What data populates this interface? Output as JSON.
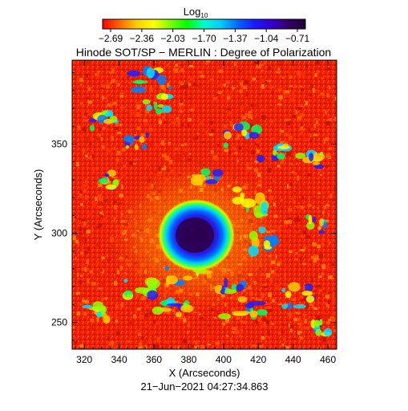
{
  "colorbar": {
    "title_base": "Log",
    "title_subscript": "10",
    "tick_labels": [
      "−2.69",
      "−2.36",
      "−2.03",
      "−1.70",
      "−1.37",
      "−1.04",
      "−0.71"
    ],
    "colors": [
      "#ff0000",
      "#ff6600",
      "#ffcc00",
      "#ffff00",
      "#80ff00",
      "#00ff00",
      "#00ffcc",
      "#00ccff",
      "#0066ff",
      "#1a1aff",
      "#3300cc",
      "#330066",
      "#1a0033"
    ]
  },
  "plot_title": "Hinode SOT/SP − MERLIN : Degree of Polarization",
  "x_axis": {
    "label": "X (Arcseconds)",
    "range": [
      313,
      465
    ],
    "tick_values": [
      320,
      340,
      360,
      380,
      400,
      420,
      440,
      460
    ],
    "tick_labels": [
      "320",
      "340",
      "360",
      "380",
      "400",
      "420",
      "440",
      "460"
    ]
  },
  "y_axis": {
    "label": "Y (Arcseconds)",
    "range": [
      235,
      397
    ],
    "tick_values": [
      250,
      300,
      350
    ],
    "tick_labels": [
      "250",
      "300",
      "350"
    ]
  },
  "image": {
    "background_colors": [
      "#e01f00",
      "#ff2a00",
      "#ff4000",
      "#ff5a00",
      "#ff7a00",
      "#c81200"
    ]
  },
  "timestamp": "21−Jun−2021 04:27:34.863"
}
